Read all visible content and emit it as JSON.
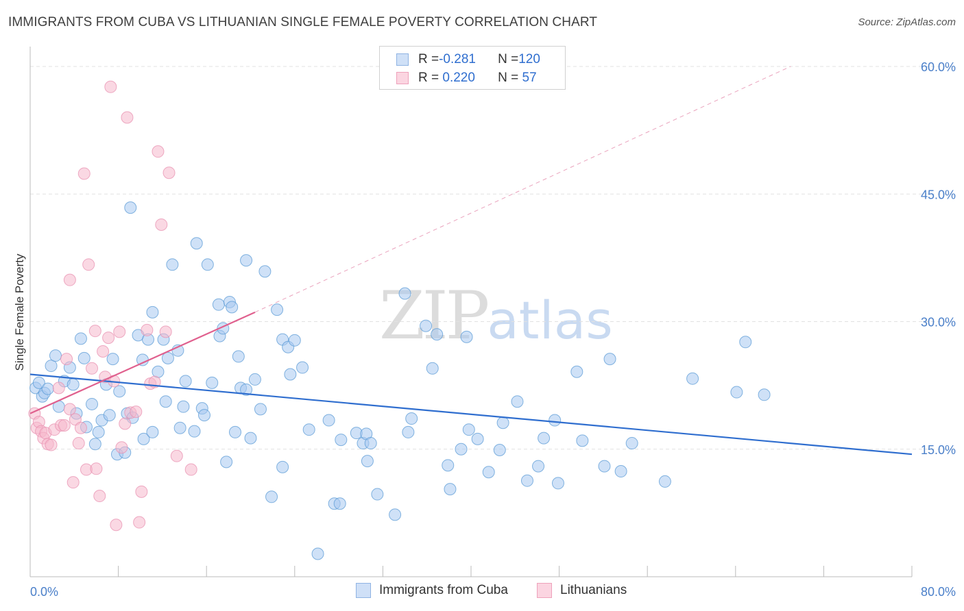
{
  "title": "IMMIGRANTS FROM CUBA VS LITHUANIAN SINGLE FEMALE POVERTY CORRELATION CHART",
  "source": "Source: ZipAtlas.com",
  "watermark": {
    "zip": "ZIP",
    "atlas": "atlas"
  },
  "legend": {
    "rows": [
      {
        "r_label": "R = ",
        "r_value": "-0.281",
        "n_label": "N = ",
        "n_value": "120",
        "color": "#a8c8f0"
      },
      {
        "r_label": "R = ",
        "r_value": " 0.220",
        "n_label": "N = ",
        "n_value": " 57",
        "color": "#f5b8cc"
      }
    ]
  },
  "bottom_legend": {
    "cuba": "Immigrants from Cuba",
    "lith": "Lithuanians"
  },
  "chart_data": {
    "type": "scatter",
    "title": "IMMIGRANTS FROM CUBA VS LITHUANIAN SINGLE FEMALE POVERTY CORRELATION CHART",
    "xlabel": "",
    "ylabel": "Single Female Poverty",
    "xlim": [
      0,
      80
    ],
    "ylim": [
      0,
      60
    ],
    "x_tick_labels": [
      "0.0%",
      "80.0%"
    ],
    "y_tick_labels": [
      "15.0%",
      "30.0%",
      "45.0%",
      "60.0%"
    ],
    "y_ticks": [
      15,
      30,
      45,
      60
    ],
    "grid": true,
    "legend_position": "top-center",
    "series": [
      {
        "name": "Immigrants from Cuba",
        "color": "#5b9bd5",
        "fill": "#a8c8f0",
        "trend": {
          "x": [
            0,
            80
          ],
          "y": [
            23.8,
            14.4
          ],
          "color": "#2f6ecf"
        },
        "points": [
          [
            0.5,
            22.2
          ],
          [
            0.8,
            22.8
          ],
          [
            1.1,
            21.2
          ],
          [
            1.3,
            21.6
          ],
          [
            1.6,
            22.1
          ],
          [
            1.9,
            24.8
          ],
          [
            2.3,
            26.0
          ],
          [
            2.6,
            20.0
          ],
          [
            3.1,
            23.0
          ],
          [
            3.6,
            24.6
          ],
          [
            3.9,
            22.6
          ],
          [
            4.2,
            19.2
          ],
          [
            4.6,
            28.0
          ],
          [
            4.9,
            25.7
          ],
          [
            5.1,
            17.6
          ],
          [
            5.6,
            20.3
          ],
          [
            5.9,
            15.6
          ],
          [
            6.2,
            17.0
          ],
          [
            6.5,
            18.4
          ],
          [
            6.9,
            22.6
          ],
          [
            7.2,
            19.0
          ],
          [
            7.5,
            25.6
          ],
          [
            7.9,
            14.4
          ],
          [
            8.1,
            21.8
          ],
          [
            8.6,
            14.6
          ],
          [
            8.8,
            19.2
          ],
          [
            9.1,
            43.4
          ],
          [
            9.3,
            18.7
          ],
          [
            9.8,
            28.4
          ],
          [
            10.2,
            25.5
          ],
          [
            10.3,
            16.2
          ],
          [
            10.7,
            27.9
          ],
          [
            11.1,
            17.0
          ],
          [
            11.1,
            31.1
          ],
          [
            11.6,
            24.1
          ],
          [
            12.1,
            27.9
          ],
          [
            12.3,
            20.6
          ],
          [
            12.5,
            25.7
          ],
          [
            12.9,
            36.7
          ],
          [
            13.4,
            26.6
          ],
          [
            13.6,
            17.5
          ],
          [
            13.9,
            20.0
          ],
          [
            14.1,
            23.0
          ],
          [
            14.9,
            17.1
          ],
          [
            15.1,
            39.2
          ],
          [
            15.6,
            19.8
          ],
          [
            15.8,
            19.0
          ],
          [
            16.1,
            36.7
          ],
          [
            16.5,
            22.8
          ],
          [
            17.1,
            32.0
          ],
          [
            17.2,
            28.3
          ],
          [
            17.5,
            29.2
          ],
          [
            17.8,
            13.5
          ],
          [
            18.1,
            32.3
          ],
          [
            18.3,
            31.7
          ],
          [
            18.6,
            17.0
          ],
          [
            18.9,
            25.9
          ],
          [
            19.1,
            22.2
          ],
          [
            19.6,
            22.0
          ],
          [
            19.6,
            37.2
          ],
          [
            20.0,
            16.3
          ],
          [
            20.4,
            23.2
          ],
          [
            20.9,
            19.7
          ],
          [
            21.3,
            35.9
          ],
          [
            21.9,
            9.4
          ],
          [
            22.4,
            31.4
          ],
          [
            22.9,
            27.9
          ],
          [
            22.9,
            12.9
          ],
          [
            23.4,
            27.0
          ],
          [
            23.6,
            23.8
          ],
          [
            24.0,
            27.8
          ],
          [
            24.7,
            24.6
          ],
          [
            25.3,
            17.3
          ],
          [
            26.1,
            2.7
          ],
          [
            27.1,
            18.4
          ],
          [
            27.6,
            8.6
          ],
          [
            28.1,
            8.6
          ],
          [
            28.2,
            16.1
          ],
          [
            29.6,
            16.9
          ],
          [
            30.2,
            15.7
          ],
          [
            30.5,
            16.8
          ],
          [
            30.6,
            13.6
          ],
          [
            30.9,
            15.7
          ],
          [
            31.5,
            9.7
          ],
          [
            33.1,
            7.3
          ],
          [
            34.0,
            33.3
          ],
          [
            34.3,
            17.0
          ],
          [
            34.6,
            18.6
          ],
          [
            35.9,
            29.5
          ],
          [
            36.5,
            24.5
          ],
          [
            36.9,
            28.5
          ],
          [
            37.9,
            13.1
          ],
          [
            38.1,
            10.3
          ],
          [
            39.1,
            15.0
          ],
          [
            39.6,
            28.2
          ],
          [
            39.8,
            17.3
          ],
          [
            40.6,
            16.2
          ],
          [
            41.6,
            12.3
          ],
          [
            42.6,
            14.9
          ],
          [
            42.9,
            18.1
          ],
          [
            44.2,
            20.6
          ],
          [
            45.1,
            11.3
          ],
          [
            46.1,
            13.0
          ],
          [
            46.6,
            16.3
          ],
          [
            47.6,
            18.4
          ],
          [
            47.9,
            11.0
          ],
          [
            49.6,
            24.1
          ],
          [
            50.1,
            16.0
          ],
          [
            52.1,
            13.0
          ],
          [
            52.6,
            25.6
          ],
          [
            53.6,
            12.4
          ],
          [
            54.6,
            15.7
          ],
          [
            57.6,
            11.2
          ],
          [
            60.1,
            23.3
          ],
          [
            64.1,
            21.7
          ],
          [
            64.9,
            27.6
          ],
          [
            66.6,
            21.4
          ]
        ]
      },
      {
        "name": "Lithuanians",
        "color": "#e890b0",
        "fill": "#f5b8cc",
        "trend": {
          "x": [
            0,
            20.4
          ],
          "y": [
            19.2,
            31.1
          ],
          "dash_x": [
            20.4,
            69
          ],
          "dash_y": [
            31.1,
            60
          ],
          "color": "#e0608e"
        },
        "points": [
          [
            0.4,
            19.2
          ],
          [
            0.6,
            17.5
          ],
          [
            0.8,
            18.2
          ],
          [
            1.0,
            17.1
          ],
          [
            1.2,
            16.3
          ],
          [
            1.4,
            16.9
          ],
          [
            1.6,
            15.6
          ],
          [
            1.9,
            15.5
          ],
          [
            2.2,
            17.3
          ],
          [
            2.6,
            22.2
          ],
          [
            2.8,
            17.8
          ],
          [
            3.1,
            17.8
          ],
          [
            3.3,
            25.6
          ],
          [
            3.6,
            34.9
          ],
          [
            3.6,
            19.7
          ],
          [
            3.9,
            11.1
          ],
          [
            4.1,
            18.5
          ],
          [
            4.4,
            15.7
          ],
          [
            4.6,
            17.5
          ],
          [
            4.9,
            47.4
          ],
          [
            5.1,
            12.6
          ],
          [
            5.3,
            36.7
          ],
          [
            5.6,
            24.5
          ],
          [
            5.9,
            28.9
          ],
          [
            6.0,
            12.7
          ],
          [
            6.3,
            9.5
          ],
          [
            6.6,
            26.5
          ],
          [
            6.8,
            23.5
          ],
          [
            7.1,
            28.1
          ],
          [
            7.3,
            57.6
          ],
          [
            7.6,
            23.0
          ],
          [
            7.8,
            6.1
          ],
          [
            8.1,
            28.8
          ],
          [
            8.3,
            15.2
          ],
          [
            8.6,
            18.0
          ],
          [
            8.8,
            54.0
          ],
          [
            9.1,
            19.3
          ],
          [
            9.6,
            19.4
          ],
          [
            9.9,
            6.4
          ],
          [
            10.1,
            10.0
          ],
          [
            10.6,
            29.0
          ],
          [
            10.9,
            22.7
          ],
          [
            11.3,
            22.9
          ],
          [
            11.6,
            50.0
          ],
          [
            11.9,
            41.4
          ],
          [
            12.3,
            28.8
          ],
          [
            12.6,
            47.5
          ],
          [
            13.3,
            14.2
          ],
          [
            14.6,
            12.6
          ]
        ]
      }
    ]
  }
}
